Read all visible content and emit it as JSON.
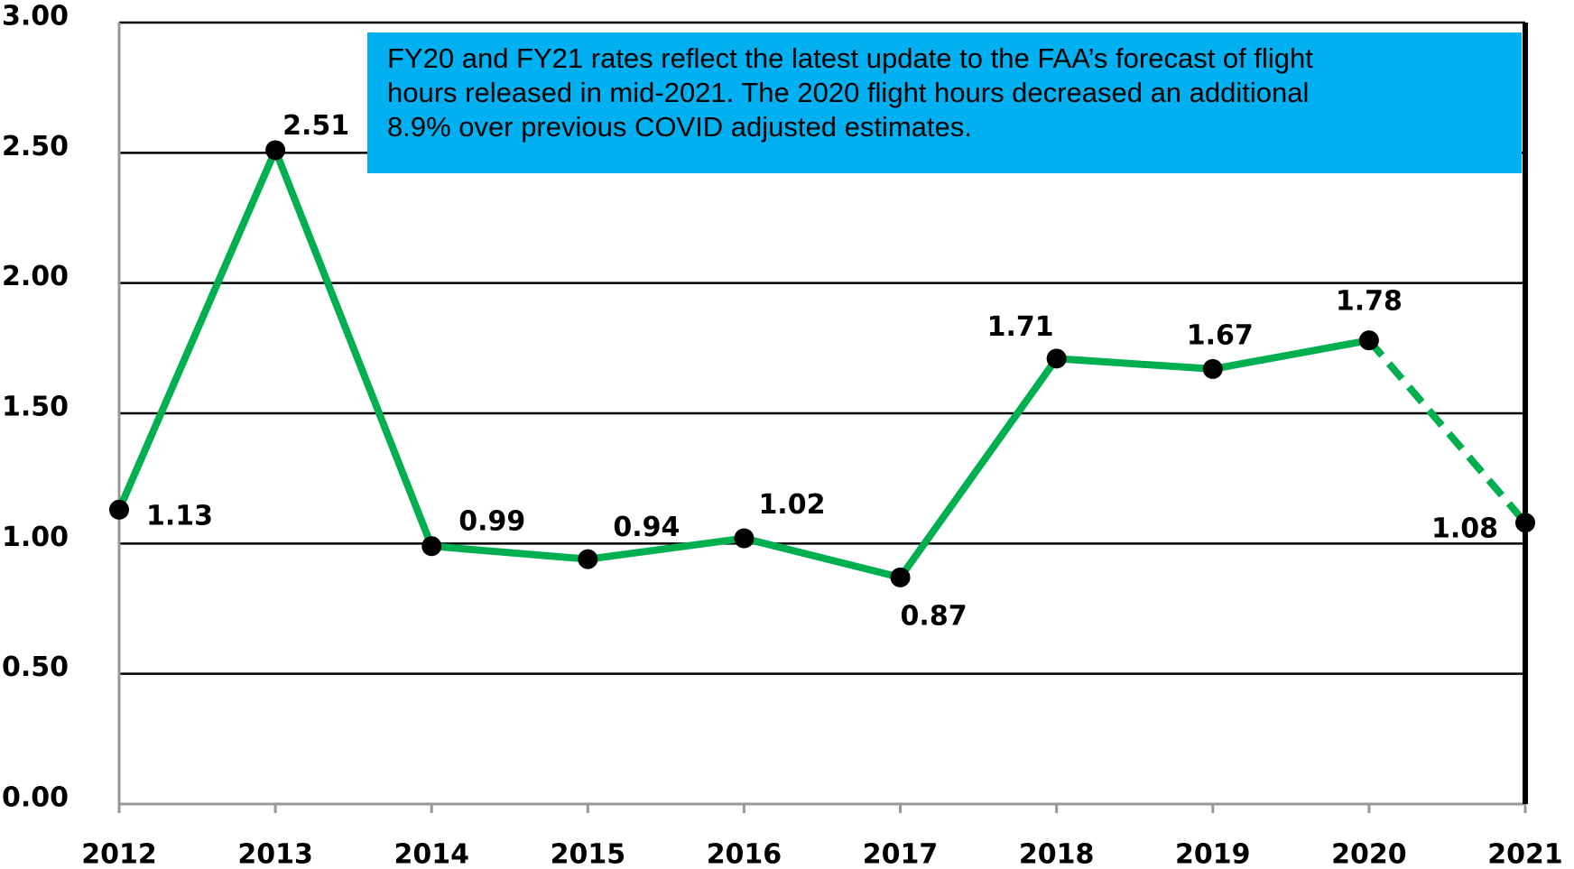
{
  "chart_data": {
    "type": "line",
    "categories": [
      "2012",
      "2013",
      "2014",
      "2015",
      "2016",
      "2017",
      "2018",
      "2019",
      "2020",
      "2021"
    ],
    "values": [
      1.13,
      2.51,
      0.99,
      0.94,
      1.02,
      0.87,
      1.71,
      1.67,
      1.78,
      1.08
    ],
    "color": "#00b050",
    "dashed_last_segment": true,
    "ylim": [
      0,
      3
    ],
    "yticks": [
      {
        "value": 0,
        "label": "0.00"
      },
      {
        "value": 0.5,
        "label": "0.50"
      },
      {
        "value": 1,
        "label": "1.00"
      },
      {
        "value": 1.5,
        "label": "1.50"
      },
      {
        "value": 2,
        "label": "2.00"
      },
      {
        "value": 2.5,
        "label": "2.50"
      },
      {
        "value": 3,
        "label": "3.00"
      }
    ],
    "grid": true,
    "annotation": [
      "FY20 and FY21 rates reflect the latest update to the FAA’s forecast of flight",
      "hours released in mid-2021. The 2020 flight hours decreased an additional",
      "8.9% over previous COVID adjusted estimates."
    ]
  }
}
